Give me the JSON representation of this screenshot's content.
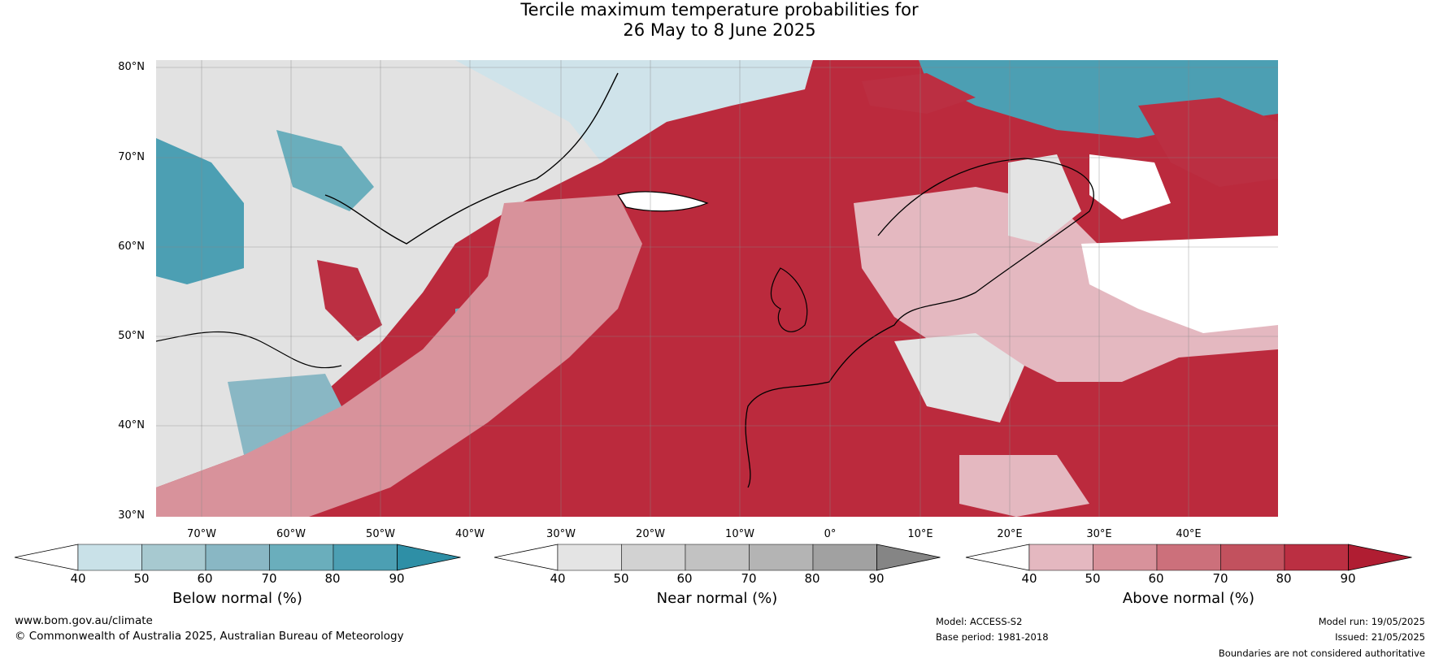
{
  "title": {
    "line1": "Tercile maximum temperature probabilities for",
    "line2": "26 May to 8 June 2025"
  },
  "map": {
    "region": "North Atlantic and Europe",
    "latitudes": [
      "80°N",
      "70°N",
      "60°N",
      "50°N",
      "40°N",
      "30°N"
    ],
    "longitudes": [
      "70°W",
      "60°W",
      "50°W",
      "40°W",
      "30°W",
      "20°W",
      "10°W",
      "0°",
      "10°E",
      "20°E",
      "30°E",
      "40°E"
    ],
    "ocean_color": "#bb2a3d",
    "land_color": "#ffffff"
  },
  "colorbars": [
    {
      "title": "Below normal (%)",
      "ticks": [
        "40",
        "50",
        "60",
        "70",
        "80",
        "90"
      ],
      "colors": [
        "#ffffff",
        "#c9e1e8",
        "#a7c9d0",
        "#89b7c4",
        "#6aaebc",
        "#4c9fb3",
        "#2e8fa6"
      ]
    },
    {
      "title": "Near normal (%)",
      "ticks": [
        "40",
        "50",
        "60",
        "70",
        "80",
        "90"
      ],
      "colors": [
        "#ffffff",
        "#e4e4e4",
        "#d2d2d2",
        "#c2c2c2",
        "#b4b4b4",
        "#a1a1a1",
        "#858585"
      ]
    },
    {
      "title": "Above normal (%)",
      "ticks": [
        "40",
        "50",
        "60",
        "70",
        "80",
        "90"
      ],
      "colors": [
        "#ffffff",
        "#e4b8c0",
        "#d8929b",
        "#cc707b",
        "#c2515e",
        "#bb2f42",
        "#b01d32"
      ]
    }
  ],
  "footer": {
    "website": "www.bom.gov.au/climate",
    "copyright": "© Commonwealth of Australia 2025, Australian Bureau of Meteorology",
    "model": "Model: ACCESS-S2",
    "base_period": "Base period: 1981-2018",
    "model_run": "Model run: 19/05/2025",
    "issued": "Issued: 21/05/2025",
    "disclaimer": "Boundaries are not considered authoritative"
  }
}
